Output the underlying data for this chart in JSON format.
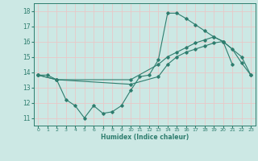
{
  "title": "",
  "xlabel": "Humidex (Indice chaleur)",
  "bg_color": "#cce8e4",
  "grid_color": "#e8c8c8",
  "line_color": "#2e7d6e",
  "x_ticks": [
    0,
    1,
    2,
    3,
    4,
    5,
    6,
    7,
    8,
    9,
    10,
    11,
    12,
    13,
    14,
    15,
    16,
    17,
    18,
    19,
    20,
    21,
    22,
    23
  ],
  "y_ticks": [
    11,
    12,
    13,
    14,
    15,
    16,
    17,
    18
  ],
  "ylim": [
    10.5,
    18.5
  ],
  "xlim": [
    -0.5,
    23.5
  ],
  "series": [
    {
      "x": [
        0,
        1,
        2,
        3,
        4,
        5,
        6,
        7,
        8,
        9,
        10,
        11,
        12,
        13,
        14,
        15,
        16,
        17,
        18,
        19,
        20,
        21
      ],
      "y": [
        13.8,
        13.8,
        13.5,
        12.2,
        11.8,
        11.0,
        11.8,
        11.3,
        11.4,
        11.8,
        12.8,
        13.7,
        13.8,
        14.8,
        17.85,
        17.85,
        17.5,
        17.1,
        16.7,
        16.3,
        16.0,
        14.5
      ]
    },
    {
      "x": [
        0,
        2,
        10,
        13,
        14,
        15,
        16,
        17,
        18,
        19,
        20,
        21,
        22,
        23
      ],
      "y": [
        13.8,
        13.5,
        13.5,
        14.5,
        15.0,
        15.3,
        15.6,
        15.9,
        16.1,
        16.3,
        16.0,
        15.5,
        14.6,
        13.8
      ]
    },
    {
      "x": [
        0,
        2,
        10,
        13,
        14,
        15,
        16,
        17,
        18,
        19,
        20,
        22,
        23
      ],
      "y": [
        13.8,
        13.5,
        13.2,
        13.7,
        14.5,
        15.0,
        15.3,
        15.5,
        15.7,
        15.9,
        16.0,
        15.0,
        13.8
      ]
    }
  ]
}
